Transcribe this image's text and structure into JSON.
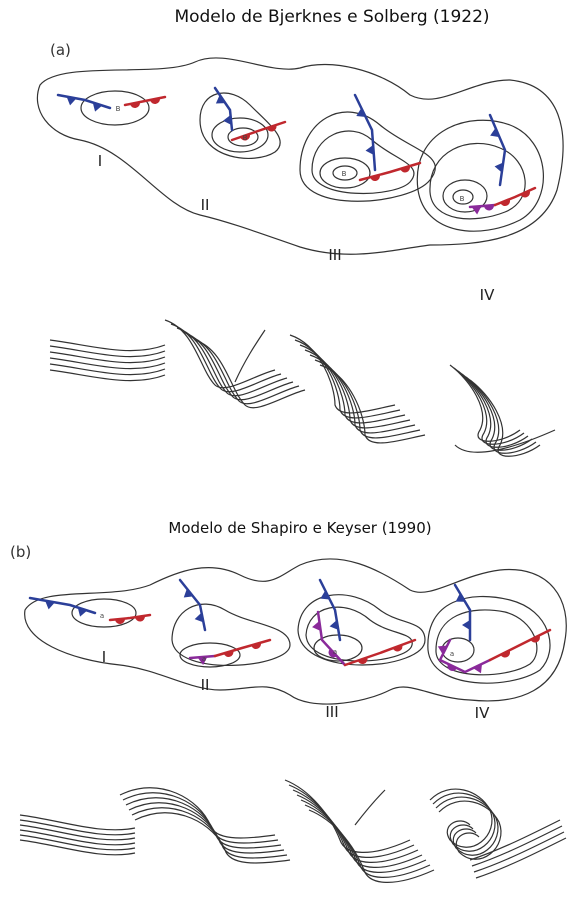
{
  "panel_a": {
    "title": "Modelo de Bjerknes e Solberg (1922)",
    "label": "(a)",
    "stages": [
      "I",
      "II",
      "III",
      "IV"
    ],
    "lows": [
      "B",
      "B",
      "B",
      "B"
    ]
  },
  "panel_b": {
    "title": "Modelo de Shapiro e Keyser (1990)",
    "label": "(b)",
    "stages": [
      "I",
      "II",
      "III",
      "IV"
    ],
    "lows": [
      "a",
      "a",
      "a",
      "a"
    ]
  }
}
